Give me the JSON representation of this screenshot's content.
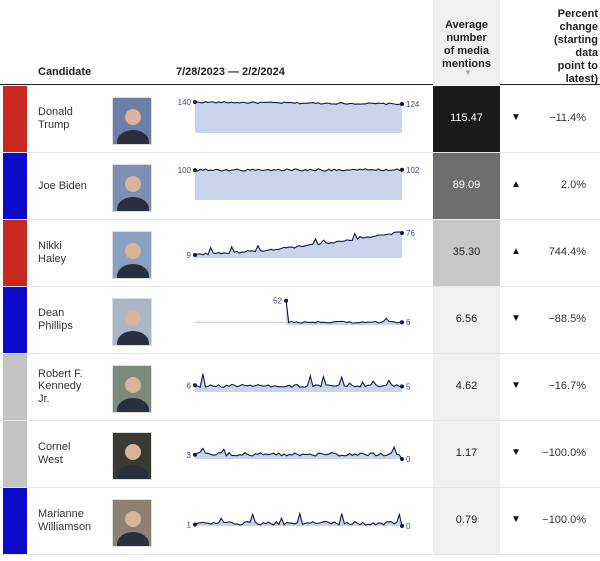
{
  "header": {
    "candidate": "Candidate",
    "date_range": "7/28/2023 — 2/2/2024",
    "avg_line1": "Average",
    "avg_line2": "number",
    "avg_line3": "of media",
    "avg_line4": "mentions",
    "sort_icon": "▼",
    "pct_line1": "Percent",
    "pct_line2": "change",
    "pct_line3": "(starting",
    "pct_line4": "data",
    "pct_line5": "point to",
    "pct_line6": "latest)"
  },
  "colors": {
    "republican": "#c8281e",
    "democrat": "#0a0ac8",
    "independent": "#c4c4c4",
    "spark_line": "#0c1a4a",
    "spark_fill": "#c9d3ea"
  },
  "chart_data": {
    "type": "table",
    "x_range": [
      "7/28/2023",
      "2/2/2024"
    ],
    "rows": [
      {
        "line1": "Donald",
        "line2": "Trump",
        "line3": "",
        "party": "republican",
        "photo_icon": "portrait-photo",
        "start": 140,
        "end": 124,
        "series_max": 145,
        "average": "115.47",
        "avg_shade": "#1a1a1a",
        "avg_text": "#ffffff",
        "direction": "down",
        "arrow": "▼",
        "pct": "−11.4%",
        "spark_start": 0.0,
        "pattern": "flat"
      },
      {
        "line1": "Joe Biden",
        "line2": "",
        "line3": "",
        "party": "democrat",
        "photo_icon": "portrait-photo",
        "start": 100,
        "end": 102,
        "series_max": 110,
        "average": "89.09",
        "avg_shade": "#6e6e6e",
        "avg_text": "#ffffff",
        "direction": "up",
        "arrow": "▲",
        "pct": "2.0%",
        "spark_start": 0.0,
        "pattern": "flat"
      },
      {
        "line1": "Nikki",
        "line2": "Haley",
        "line3": "",
        "party": "republican",
        "photo_icon": "portrait-photo",
        "start": 9,
        "end": 76,
        "series_max": 85,
        "average": "35.30",
        "avg_shade": "#c7c7c7",
        "avg_text": "#222222",
        "direction": "up",
        "arrow": "▲",
        "pct": "744.4%",
        "spark_start": 0.0,
        "pattern": "rise"
      },
      {
        "line1": "Dean",
        "line2": "Phillips",
        "line3": "",
        "party": "democrat",
        "photo_icon": "portrait-photo",
        "start": 52,
        "end": 6,
        "series_max": 60,
        "average": "6.56",
        "avg_shade": "#f0f0f0",
        "avg_text": "#222222",
        "direction": "down",
        "arrow": "▼",
        "pct": "−88.5%",
        "spark_start": 0.44,
        "pattern": "drop"
      },
      {
        "line1": "Robert F.",
        "line2": "Kennedy",
        "line3": "Jr.",
        "party": "independent",
        "photo_icon": "portrait-photo",
        "start": 6,
        "end": 5,
        "series_max": 25,
        "average": "4.62",
        "avg_shade": "#f0f0f0",
        "avg_text": "#222222",
        "direction": "down",
        "arrow": "▼",
        "pct": "−16.7%",
        "spark_start": 0.0,
        "pattern": "low"
      },
      {
        "line1": "Cornel",
        "line2": "West",
        "line3": "",
        "party": "independent",
        "photo_icon": "portrait-photo",
        "start": 3,
        "end": 0,
        "series_max": 20,
        "average": "1.17",
        "avg_shade": "#f0f0f0",
        "avg_text": "#222222",
        "direction": "down",
        "arrow": "▼",
        "pct": "−100.0%",
        "spark_start": 0.0,
        "pattern": "low"
      },
      {
        "line1": "Marianne",
        "line2": "Williamson",
        "line3": "",
        "party": "democrat",
        "photo_icon": "portrait-photo",
        "start": 1,
        "end": 0,
        "series_max": 20,
        "average": "0.79",
        "avg_shade": "#f0f0f0",
        "avg_text": "#222222",
        "direction": "down",
        "arrow": "▼",
        "pct": "−100.0%",
        "spark_start": 0.0,
        "pattern": "low"
      }
    ]
  }
}
